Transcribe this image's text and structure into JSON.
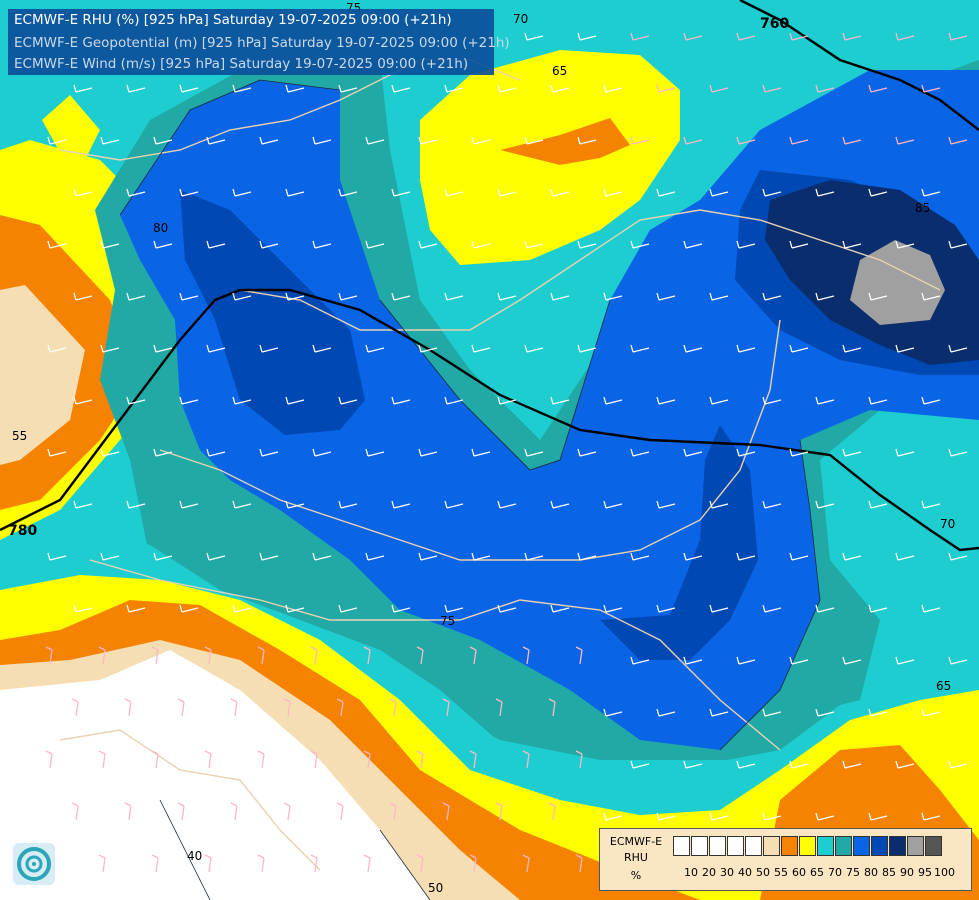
{
  "title": {
    "line1": "ECMWF-E RHU (%) [925 hPa] Saturday 19-07-2025 09:00 (+21h)",
    "line2": "ECMWF-E Geopotential (m) [925 hPa] Saturday 19-07-2025 09:00 (+21h)",
    "line3": "ECMWF-E Wind (m/s) [925 hPa] Saturday 19-07-2025 09:00 (+21h)"
  },
  "legend": {
    "label1": "ECMWF-E",
    "label2": "RHU",
    "label3": "%",
    "ticks": [
      "10",
      "20",
      "30",
      "40",
      "50",
      "55",
      "60",
      "65",
      "70",
      "75",
      "80",
      "85",
      "90",
      "95",
      "100"
    ],
    "colors": [
      "#ffffff",
      "#ffffff",
      "#ffffff",
      "#ffffff",
      "#ffffff",
      "#f5deb3",
      "#f58200",
      "#ffff00",
      "#1ecdd0",
      "#21a9a6",
      "#0a64e6",
      "#0048b4",
      "#0a2d6e",
      "#a0a0a0",
      "#555555"
    ]
  },
  "contour_labels": {
    "rhu": [
      "75",
      "70",
      "65",
      "80",
      "85",
      "55",
      "70",
      "75",
      "65",
      "40",
      "50"
    ],
    "geopotential": [
      "760",
      "780"
    ]
  },
  "colors": {
    "c50": "#f5deb3",
    "c55": "#f58200",
    "c60": "#ffff00",
    "c65": "#1ecdd0",
    "c70": "#21a9a6",
    "c75": "#0a64e6",
    "c80": "#0048b4",
    "c85": "#0a2d6e",
    "c90": "#a0a0a0",
    "border": "#e8d2b0",
    "barb": "#ffffff"
  }
}
